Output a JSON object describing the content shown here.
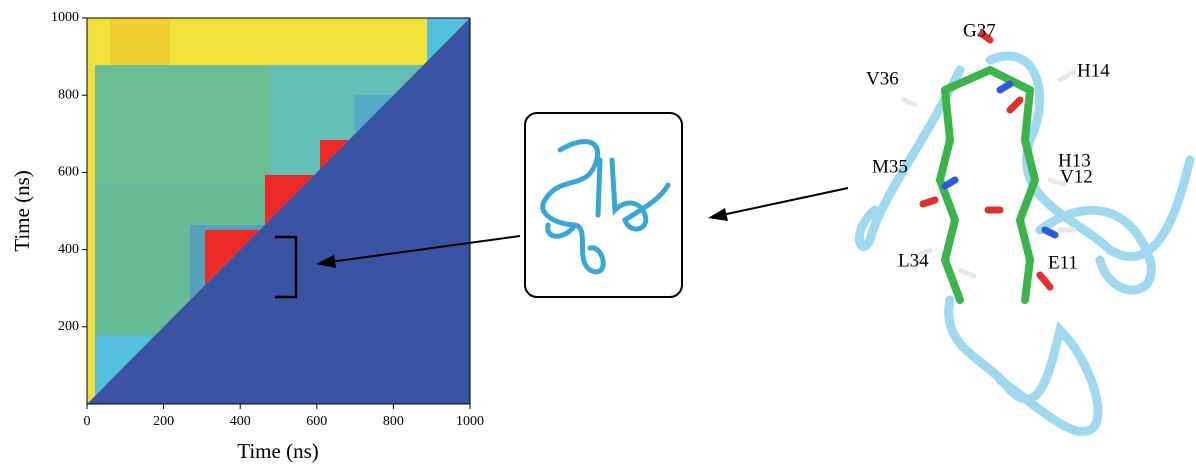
{
  "chart_data": {
    "type": "heatmap",
    "xlabel": "Time (ns)",
    "ylabel": "Time (ns)",
    "xlim": [
      0,
      1000
    ],
    "ylim": [
      0,
      1000
    ],
    "xticks": [
      0,
      200,
      400,
      600,
      800,
      1000
    ],
    "yticks": [
      200,
      400,
      600,
      800,
      1000
    ]
  },
  "residue_labels": [
    "G37",
    "V36",
    "H14",
    "H13",
    "M35",
    "V12",
    "L34",
    "E11"
  ]
}
